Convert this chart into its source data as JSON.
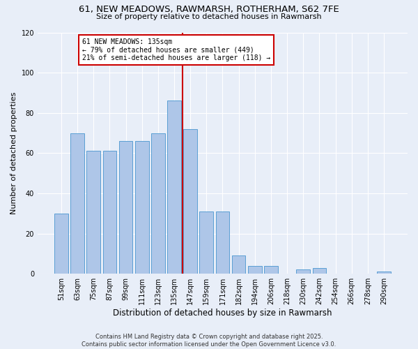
{
  "title": "61, NEW MEADOWS, RAWMARSH, ROTHERHAM, S62 7FE",
  "subtitle": "Size of property relative to detached houses in Rawmarsh",
  "xlabel": "Distribution of detached houses by size in Rawmarsh",
  "ylabel": "Number of detached properties",
  "categories": [
    "51sqm",
    "63sqm",
    "75sqm",
    "87sqm",
    "99sqm",
    "111sqm",
    "123sqm",
    "135sqm",
    "147sqm",
    "159sqm",
    "171sqm",
    "182sqm",
    "194sqm",
    "206sqm",
    "218sqm",
    "230sqm",
    "242sqm",
    "254sqm",
    "266sqm",
    "278sqm",
    "290sqm"
  ],
  "values": [
    30,
    70,
    61,
    61,
    66,
    66,
    70,
    86,
    72,
    31,
    31,
    9,
    4,
    4,
    0,
    2,
    3,
    0,
    0,
    0,
    1
  ],
  "bar_color": "#aec6e8",
  "bar_edge_color": "#5a9fd4",
  "ylim": [
    0,
    120
  ],
  "yticks": [
    0,
    20,
    40,
    60,
    80,
    100,
    120
  ],
  "vline_index": 7,
  "annotation_title": "61 NEW MEADOWS: 135sqm",
  "annotation_line1": "← 79% of detached houses are smaller (449)",
  "annotation_line2": "21% of semi-detached houses are larger (118) →",
  "vline_color": "#cc0000",
  "annotation_box_color": "#ffffff",
  "annotation_box_edge": "#cc0000",
  "footer1": "Contains HM Land Registry data © Crown copyright and database right 2025.",
  "footer2": "Contains public sector information licensed under the Open Government Licence v3.0.",
  "bg_color": "#e8eef8",
  "grid_color": "#ffffff"
}
